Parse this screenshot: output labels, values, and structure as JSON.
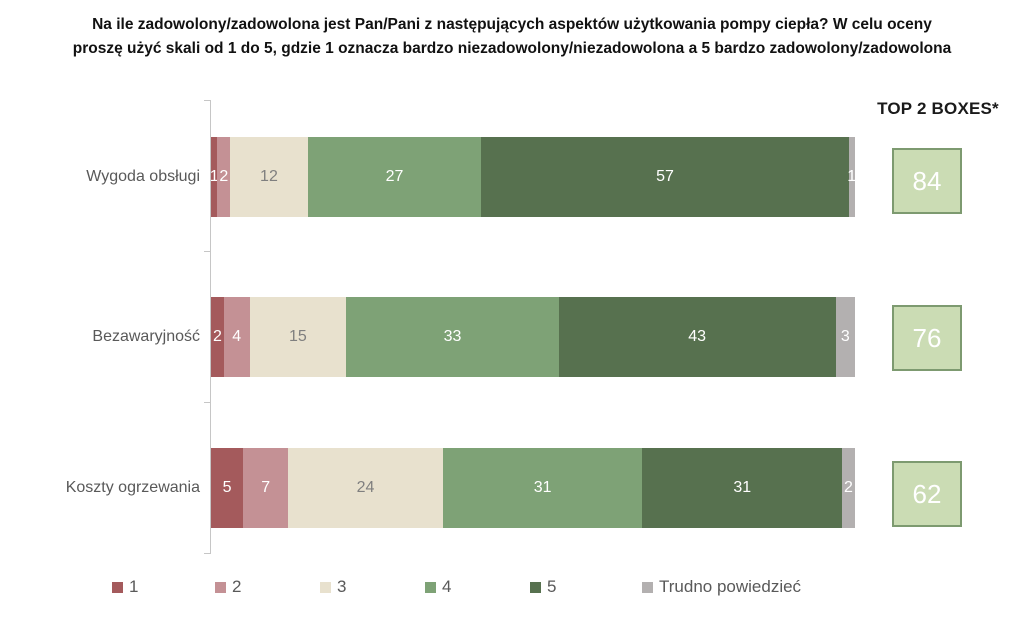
{
  "title_line1": "Na ile zadowolony/zadowolona jest Pan/Pani z następujących aspektów użytkowania pompy ciepła? W celu oceny",
  "title_line2": "proszę użyć skali od 1 do 5, gdzie 1 oznacza bardzo niezadowolony/niezadowolona a 5 bardzo zadowolony/zadowolona",
  "top2_header": "TOP 2 BOXES*",
  "colors": {
    "scale1": "#a45a5c",
    "scale2": "#c49195",
    "scale3": "#e8e1ce",
    "scale4": "#7ea276",
    "scale5": "#57714f",
    "dont_know": "#b3b0b0",
    "box_fill": "#cbdcb4",
    "box_border": "#7d9a70",
    "label_gray": "#595959",
    "beige_value_text": "#7f7f7f",
    "value_text_light": "#ffffff"
  },
  "chart_data": {
    "type": "bar",
    "orientation": "horizontal",
    "stacked": true,
    "xlim": [
      0,
      100
    ],
    "grid": false,
    "legend_position": "bottom",
    "categories": [
      "Wygoda obsługi",
      "Bezawaryjność",
      "Koszty ogrzewania"
    ],
    "series": [
      {
        "name": "1",
        "color": "#a45a5c",
        "text_color": "#ffffff",
        "values": [
          1,
          2,
          5
        ]
      },
      {
        "name": "2",
        "color": "#c49195",
        "text_color": "#ffffff",
        "values": [
          2,
          4,
          7
        ]
      },
      {
        "name": "3",
        "color": "#e8e1ce",
        "text_color": "#7f7f7f",
        "values": [
          12,
          15,
          24
        ]
      },
      {
        "name": "4",
        "color": "#7ea276",
        "text_color": "#ffffff",
        "values": [
          27,
          33,
          31
        ]
      },
      {
        "name": "5",
        "color": "#57714f",
        "text_color": "#ffffff",
        "values": [
          57,
          43,
          31
        ]
      },
      {
        "name": "Trudno powiedzieć",
        "color": "#b3b0b0",
        "text_color": "#ffffff",
        "values": [
          1,
          3,
          2
        ]
      }
    ],
    "top2_boxes": [
      84,
      76,
      62
    ],
    "legend": [
      "1",
      "2",
      "3",
      "4",
      "5",
      "Trudno powiedzieć"
    ]
  }
}
